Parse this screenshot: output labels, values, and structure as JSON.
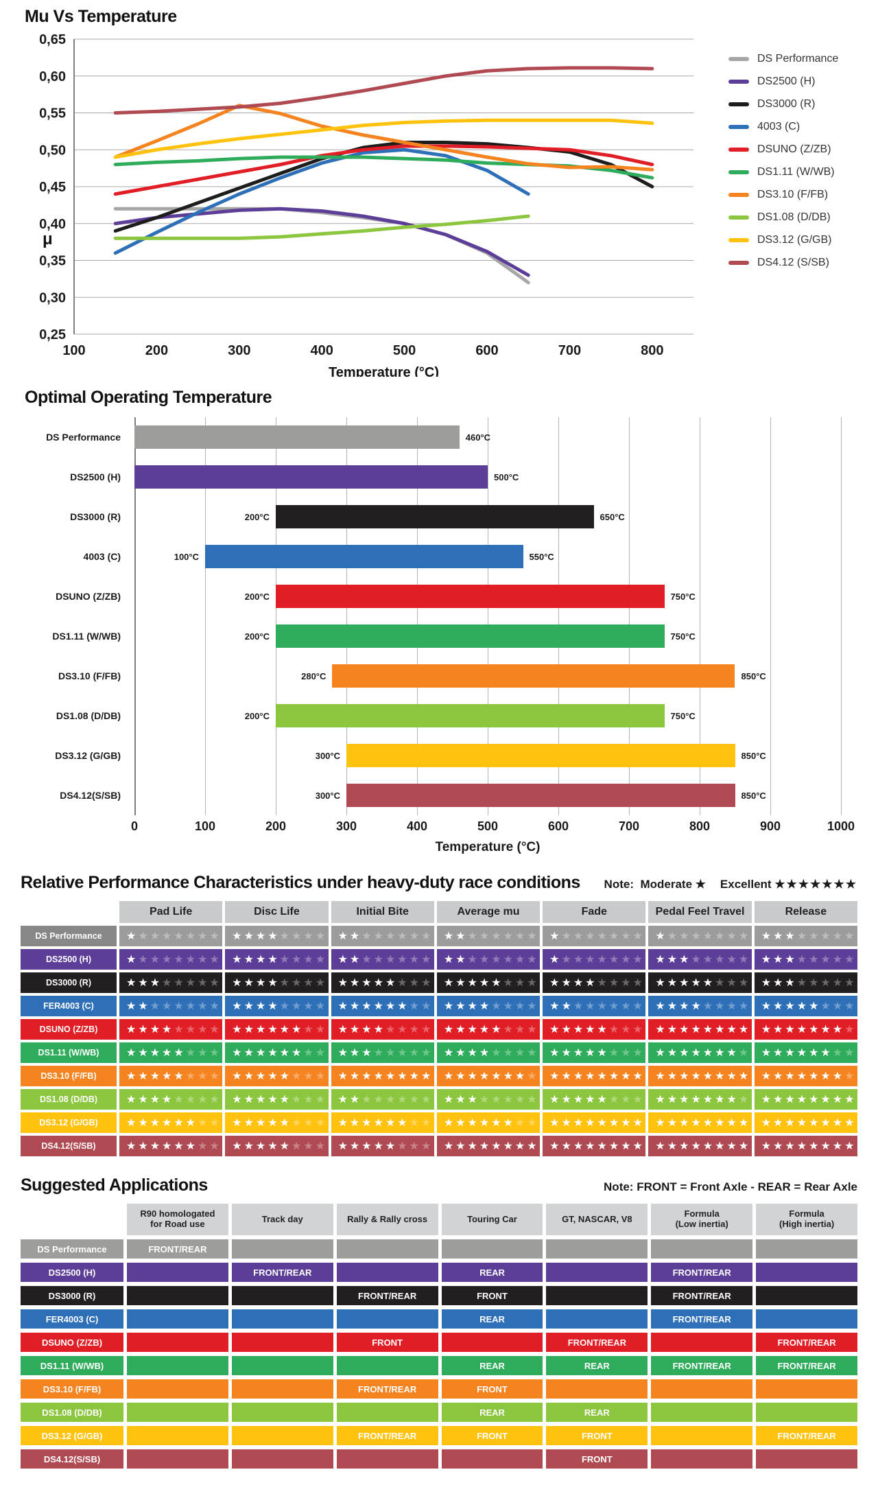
{
  "chart_data": [
    {
      "type": "line",
      "title": "Mu Vs Temperature",
      "xlabel": "Temperature (°C)",
      "ylabel": "μ",
      "xlim": [
        100,
        850
      ],
      "ylim": [
        0.25,
        0.65
      ],
      "grid": "horizontal",
      "legend_position": "right",
      "xticks": [
        100,
        200,
        300,
        400,
        500,
        600,
        700,
        800
      ],
      "yticks": [
        0.65,
        0.6,
        0.55,
        0.5,
        0.45,
        0.4,
        0.35,
        0.3,
        0.25
      ],
      "ytick_labels": [
        "0,65",
        "0,60",
        "0,55",
        "0,50",
        "0,45",
        "0,40",
        "0,35",
        "0,30",
        "0,25"
      ],
      "series": [
        {
          "name": "DS Performance",
          "color": "#A6A6A6",
          "x": [
            150,
            200,
            250,
            300,
            350,
            400,
            450,
            500,
            550,
            600,
            650
          ],
          "y": [
            0.42,
            0.42,
            0.42,
            0.42,
            0.42,
            0.415,
            0.408,
            0.4,
            0.385,
            0.36,
            0.32
          ]
        },
        {
          "name": "DS2500 (H)",
          "color": "#5C3E98",
          "x": [
            150,
            200,
            250,
            300,
            350,
            400,
            450,
            500,
            550,
            600,
            650
          ],
          "y": [
            0.4,
            0.408,
            0.413,
            0.418,
            0.42,
            0.417,
            0.41,
            0.4,
            0.385,
            0.362,
            0.33
          ]
        },
        {
          "name": "DS3000 (R)",
          "color": "#1D1D1B",
          "x": [
            150,
            200,
            250,
            300,
            350,
            400,
            450,
            500,
            550,
            600,
            650,
            700,
            750,
            800
          ],
          "y": [
            0.39,
            0.408,
            0.428,
            0.448,
            0.468,
            0.488,
            0.503,
            0.51,
            0.51,
            0.508,
            0.503,
            0.497,
            0.48,
            0.45
          ]
        },
        {
          "name": "4003 (C)",
          "color": "#2E70B8",
          "x": [
            150,
            200,
            250,
            300,
            350,
            400,
            450,
            500,
            550,
            600,
            650
          ],
          "y": [
            0.36,
            0.388,
            0.415,
            0.44,
            0.462,
            0.482,
            0.496,
            0.5,
            0.492,
            0.472,
            0.44
          ]
        },
        {
          "name": "DSUNO (Z/ZB)",
          "color": "#E11D26",
          "x": [
            150,
            200,
            250,
            300,
            350,
            400,
            450,
            500,
            550,
            600,
            650,
            700,
            750,
            800
          ],
          "y": [
            0.44,
            0.45,
            0.46,
            0.47,
            0.48,
            0.492,
            0.5,
            0.505,
            0.505,
            0.504,
            0.502,
            0.5,
            0.492,
            0.48
          ]
        },
        {
          "name": "DS1.11 (W/WB)",
          "color": "#2FAC5B",
          "x": [
            150,
            200,
            250,
            300,
            350,
            400,
            450,
            500,
            550,
            600,
            650,
            700,
            750,
            800
          ],
          "y": [
            0.48,
            0.483,
            0.485,
            0.488,
            0.49,
            0.49,
            0.49,
            0.488,
            0.486,
            0.482,
            0.48,
            0.478,
            0.472,
            0.462
          ]
        },
        {
          "name": "DS3.10 (F/FB)",
          "color": "#F5831F",
          "x": [
            150,
            200,
            250,
            300,
            350,
            400,
            450,
            500,
            550,
            600,
            650,
            700,
            750,
            800
          ],
          "y": [
            0.49,
            0.512,
            0.535,
            0.56,
            0.549,
            0.532,
            0.52,
            0.51,
            0.5,
            0.49,
            0.481,
            0.476,
            0.477,
            0.473
          ]
        },
        {
          "name": "DS1.08 (D/DB)",
          "color": "#8CC63F",
          "x": [
            150,
            200,
            250,
            300,
            350,
            400,
            450,
            500,
            550,
            600,
            650
          ],
          "y": [
            0.38,
            0.38,
            0.38,
            0.38,
            0.382,
            0.386,
            0.39,
            0.395,
            0.399,
            0.404,
            0.41
          ]
        },
        {
          "name": "DS3.12 (G/GB)",
          "color": "#FFC20E",
          "x": [
            150,
            200,
            250,
            300,
            350,
            400,
            450,
            500,
            550,
            600,
            650,
            700,
            750,
            800
          ],
          "y": [
            0.49,
            0.5,
            0.508,
            0.515,
            0.521,
            0.527,
            0.533,
            0.537,
            0.539,
            0.54,
            0.54,
            0.54,
            0.54,
            0.536
          ]
        },
        {
          "name": "DS4.12 (S/SB)",
          "color": "#B04A52",
          "x": [
            150,
            200,
            250,
            300,
            350,
            400,
            450,
            500,
            550,
            600,
            650,
            700,
            750,
            800
          ],
          "y": [
            0.55,
            0.552,
            0.555,
            0.558,
            0.563,
            0.571,
            0.58,
            0.59,
            0.6,
            0.607,
            0.61,
            0.611,
            0.611,
            0.61
          ]
        }
      ]
    },
    {
      "type": "bar",
      "title": "Optimal Operating Temperature",
      "xlabel": "Temperature (°C)",
      "orientation": "horizontal",
      "xlim": [
        0,
        1000
      ],
      "xticks": [
        0,
        100,
        200,
        300,
        400,
        500,
        600,
        700,
        800,
        900,
        1000
      ],
      "bars": [
        {
          "name": "DS Performance",
          "color": "#9D9D9C",
          "start": 0,
          "end": 460,
          "start_label": "",
          "end_label": "460°C"
        },
        {
          "name": "DS2500 (H)",
          "color": "#5C3E98",
          "start": 0,
          "end": 500,
          "start_label": "",
          "end_label": "500°C"
        },
        {
          "name": "DS3000 (R)",
          "color": "#231F20",
          "start": 200,
          "end": 650,
          "start_label": "200°C",
          "end_label": "650°C"
        },
        {
          "name": "4003 (C)",
          "color": "#2E70B8",
          "start": 100,
          "end": 550,
          "start_label": "100°C",
          "end_label": "550°C"
        },
        {
          "name": "DSUNO (Z/ZB)",
          "color": "#E11D26",
          "start": 200,
          "end": 750,
          "start_label": "200°C",
          "end_label": "750°C"
        },
        {
          "name": "DS1.11 (W/WB)",
          "color": "#2FAC5B",
          "start": 200,
          "end": 750,
          "start_label": "200°C",
          "end_label": "750°C"
        },
        {
          "name": "DS3.10 (F/FB)",
          "color": "#F5831F",
          "start": 280,
          "end": 850,
          "start_label": "280°C",
          "end_label": "850°C"
        },
        {
          "name": "DS1.08 (D/DB)",
          "color": "#8CC63F",
          "start": 200,
          "end": 750,
          "start_label": "200°C",
          "end_label": "750°C"
        },
        {
          "name": "DS3.12 (G/GB)",
          "color": "#FFC20E",
          "start": 300,
          "end": 850,
          "start_label": "300°C",
          "end_label": "850°C"
        },
        {
          "name": "DS4.12(S/SB)",
          "color": "#B04A52",
          "start": 300,
          "end": 850,
          "start_label": "300°C",
          "end_label": "850°C"
        }
      ]
    },
    {
      "type": "table",
      "title": "Relative Performance Characteristics under heavy-duty race conditions",
      "note": {
        "prefix": "Note:",
        "moderate_label": "Moderate",
        "moderate_stars": "★",
        "excellent_label": "Excellent",
        "excellent_stars": "★★★★★★★"
      },
      "max_stars": 8,
      "columns": [
        "Pad Life",
        "Disc Life",
        "Initial Bite",
        "Average mu",
        "Fade",
        "Pedal Feel Travel",
        "Release"
      ],
      "rows": [
        {
          "name": "DS Performance",
          "color": "#9C9C9C",
          "label_color": "#878787",
          "values": [
            1,
            4,
            2,
            2,
            1,
            1,
            3
          ]
        },
        {
          "name": "DS2500 (H)",
          "color": "#5C3E98",
          "label_color": "#5C3E98",
          "values": [
            1,
            4,
            2,
            2,
            1,
            3,
            3
          ]
        },
        {
          "name": "DS3000 (R)",
          "color": "#231F20",
          "label_color": "#231F20",
          "values": [
            3,
            4,
            5,
            5,
            4,
            5,
            3
          ]
        },
        {
          "name": "FER4003 (C)",
          "color": "#2E70B8",
          "label_color": "#2E70B8",
          "values": [
            2,
            4,
            6,
            4,
            2,
            4,
            5
          ]
        },
        {
          "name": "DSUNO (Z/ZB)",
          "color": "#E11D26",
          "label_color": "#E11D26",
          "values": [
            4,
            6,
            4,
            5,
            5,
            8,
            7
          ]
        },
        {
          "name": "DS1.11 (W/WB)",
          "color": "#2FAC5B",
          "label_color": "#2FAC5B",
          "values": [
            5,
            6,
            3,
            4,
            5,
            7,
            6
          ]
        },
        {
          "name": "DS3.10 (F/FB)",
          "color": "#F5831F",
          "label_color": "#F5831F",
          "values": [
            5,
            5,
            8,
            7,
            8,
            8,
            7
          ]
        },
        {
          "name": "DS1.08 (D/DB)",
          "color": "#8CC63F",
          "label_color": "#8CC63F",
          "values": [
            4,
            5,
            2,
            3,
            5,
            7,
            8
          ]
        },
        {
          "name": "DS3.12 (G/GB)",
          "color": "#FFC20E",
          "label_color": "#FFC20E",
          "values": [
            6,
            5,
            6,
            6,
            8,
            8,
            8
          ]
        },
        {
          "name": "DS4.12(S/SB)",
          "color": "#B04A52",
          "label_color": "#B04A52",
          "values": [
            6,
            5,
            5,
            8,
            8,
            8,
            8
          ]
        }
      ]
    },
    {
      "type": "table",
      "title": "Suggested Applications",
      "note": "Note: FRONT = Front Axle - REAR = Rear Axle",
      "columns": [
        "R90 homologated\nfor Road use",
        "Track day",
        "Rally & Rally cross",
        "Touring Car",
        "GT, NASCAR, V8",
        "Formula\n(Low inertia)",
        "Formula\n(High inertia)"
      ],
      "rows": [
        {
          "name": "DS Performance",
          "color": "#9D9D9C",
          "cells": [
            "FRONT/REAR",
            "",
            "",
            "",
            "",
            "",
            ""
          ]
        },
        {
          "name": "DS2500 (H)",
          "color": "#5C3E98",
          "cells": [
            "",
            "FRONT/REAR",
            "",
            "REAR",
            "",
            "FRONT/REAR",
            ""
          ]
        },
        {
          "name": "DS3000 (R)",
          "color": "#231F20",
          "cells": [
            "",
            "",
            "FRONT/REAR",
            "FRONT",
            "",
            "FRONT/REAR",
            ""
          ]
        },
        {
          "name": "FER4003 (C)",
          "color": "#2E70B8",
          "cells": [
            "",
            "",
            "",
            "REAR",
            "",
            "FRONT/REAR",
            ""
          ]
        },
        {
          "name": "DSUNO (Z/ZB)",
          "color": "#E11D26",
          "cells": [
            "",
            "",
            "FRONT",
            "",
            "FRONT/REAR",
            "",
            "FRONT/REAR"
          ]
        },
        {
          "name": "DS1.11 (W/WB)",
          "color": "#2FAC5B",
          "cells": [
            "",
            "",
            "",
            "REAR",
            "REAR",
            "FRONT/REAR",
            "FRONT/REAR"
          ]
        },
        {
          "name": "DS3.10 (F/FB)",
          "color": "#F5831F",
          "cells": [
            "",
            "",
            "FRONT/REAR",
            "FRONT",
            "",
            "",
            ""
          ]
        },
        {
          "name": "DS1.08 (D/DB)",
          "color": "#8CC63F",
          "cells": [
            "",
            "",
            "",
            "REAR",
            "REAR",
            "",
            ""
          ]
        },
        {
          "name": "DS3.12 (G/GB)",
          "color": "#FFC20E",
          "cells": [
            "",
            "",
            "FRONT/REAR",
            "FRONT",
            "FRONT",
            "",
            "FRONT/REAR"
          ]
        },
        {
          "name": "DS4.12(S/SB)",
          "color": "#B04A52",
          "cells": [
            "",
            "",
            "",
            "",
            "FRONT",
            "",
            ""
          ]
        }
      ]
    }
  ]
}
